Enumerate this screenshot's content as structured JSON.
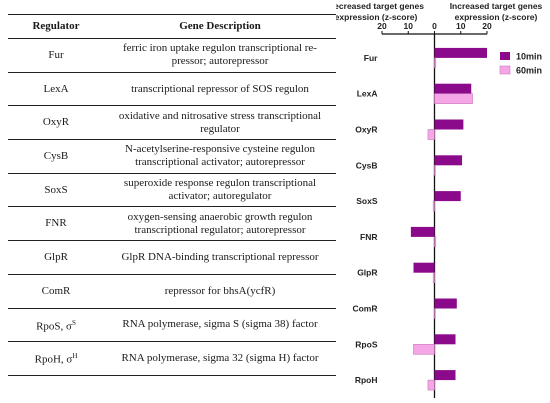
{
  "table": {
    "headers": [
      "Regulator",
      "Gene Description"
    ],
    "rows": [
      {
        "regulator": "Fur",
        "sup": "",
        "description": "ferric iron uptake regulon transcriptional re-pressor; autorepressor"
      },
      {
        "regulator": "LexA",
        "sup": "",
        "description": "transcriptional repressor of SOS regulon"
      },
      {
        "regulator": "OxyR",
        "sup": "",
        "description": "oxidative and nitrosative stress transcriptional regulator"
      },
      {
        "regulator": "CysB",
        "sup": "",
        "description": "N-acetylserine-responsive cysteine regulon transcriptional activator; autorepressor"
      },
      {
        "regulator": "SoxS",
        "sup": "",
        "description": "superoxide response regulon transcriptional activator; autoregulator"
      },
      {
        "regulator": "FNR",
        "sup": "",
        "description": "oxygen-sensing anaerobic growth regulon transcriptional regulator; autorepressor"
      },
      {
        "regulator": "GlpR",
        "sup": "",
        "description": "GlpR DNA-binding transcriptional repressor"
      },
      {
        "regulator": "ComR",
        "sup": "",
        "description": "repressor for bhsA(ycfR)"
      },
      {
        "regulator": "RpoS, σ",
        "sup": "S",
        "description": "RNA polymerase, sigma S (sigma 38) factor"
      },
      {
        "regulator": "RpoH, σ",
        "sup": "H",
        "description": "RNA polymerase, sigma 32 (sigma H) factor"
      }
    ]
  },
  "chart_data": {
    "type": "bar",
    "orientation": "horizontal",
    "left_title": "Decreased target genes expression (z-score)",
    "right_title": "Increased target genes expression (z-score)",
    "ticks": [
      "20",
      "10",
      "0",
      "10",
      "20"
    ],
    "xlim": [
      -20,
      20
    ],
    "categories": [
      "Fur",
      "LexA",
      "OxyR",
      "CysB",
      "SoxS",
      "FNR",
      "GlpR",
      "ComR",
      "RpoS",
      "RpoH"
    ],
    "series": [
      {
        "name": "10min",
        "color": "#8B0A8B",
        "values": [
          20,
          14,
          11,
          10.5,
          10,
          -9,
          -8,
          8.5,
          8,
          8
        ]
      },
      {
        "name": "60min",
        "color": "#F4A6E6",
        "values": [
          0.5,
          14.5,
          -2.5,
          0,
          -0.5,
          0.5,
          -0.5,
          0,
          -8,
          -2.5
        ]
      }
    ],
    "legend_position": "top-right"
  }
}
